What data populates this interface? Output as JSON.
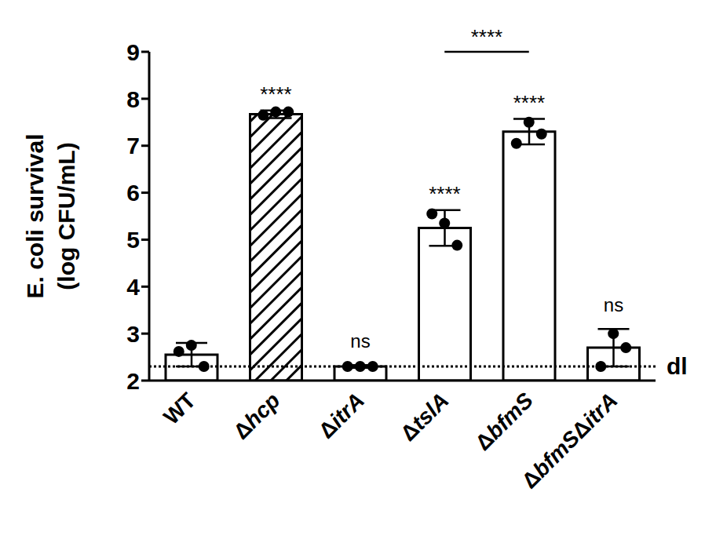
{
  "chart_data": {
    "type": "bar",
    "ylabel": [
      "E. coli survival",
      "(log CFU/mL)"
    ],
    "categories": [
      "WT",
      "Δhcp",
      "ΔitrA",
      "ΔtslA",
      "ΔbfmS",
      "ΔbfmSΔitrA"
    ],
    "values": [
      2.55,
      7.67,
      2.3,
      5.25,
      7.3,
      2.7
    ],
    "errors": [
      0.25,
      0.08,
      0.03,
      0.38,
      0.27,
      0.4
    ],
    "points": [
      [
        2.62,
        2.75,
        2.3
      ],
      [
        7.65,
        7.72,
        7.72
      ],
      [
        2.3,
        2.3,
        2.3
      ],
      [
        5.55,
        5.35,
        4.88
      ],
      [
        7.05,
        7.5,
        7.25
      ],
      [
        2.3,
        3.0,
        2.7
      ]
    ],
    "significance": [
      null,
      "****",
      "ns",
      "****",
      "****",
      "ns"
    ],
    "comparisons": [
      {
        "from": "ΔtslA",
        "to": "ΔbfmS",
        "label": "****"
      }
    ],
    "detection_limit": {
      "value": 2.3,
      "label": "dl"
    },
    "colors": [
      "#ffffff",
      "#000000",
      "#ffffff",
      "#ffffff",
      "#ffffff",
      "#ffffff"
    ],
    "ylim": [
      2,
      9
    ],
    "yticks": [
      2,
      3,
      4,
      5,
      6,
      7,
      8,
      9
    ],
    "grid": false
  }
}
